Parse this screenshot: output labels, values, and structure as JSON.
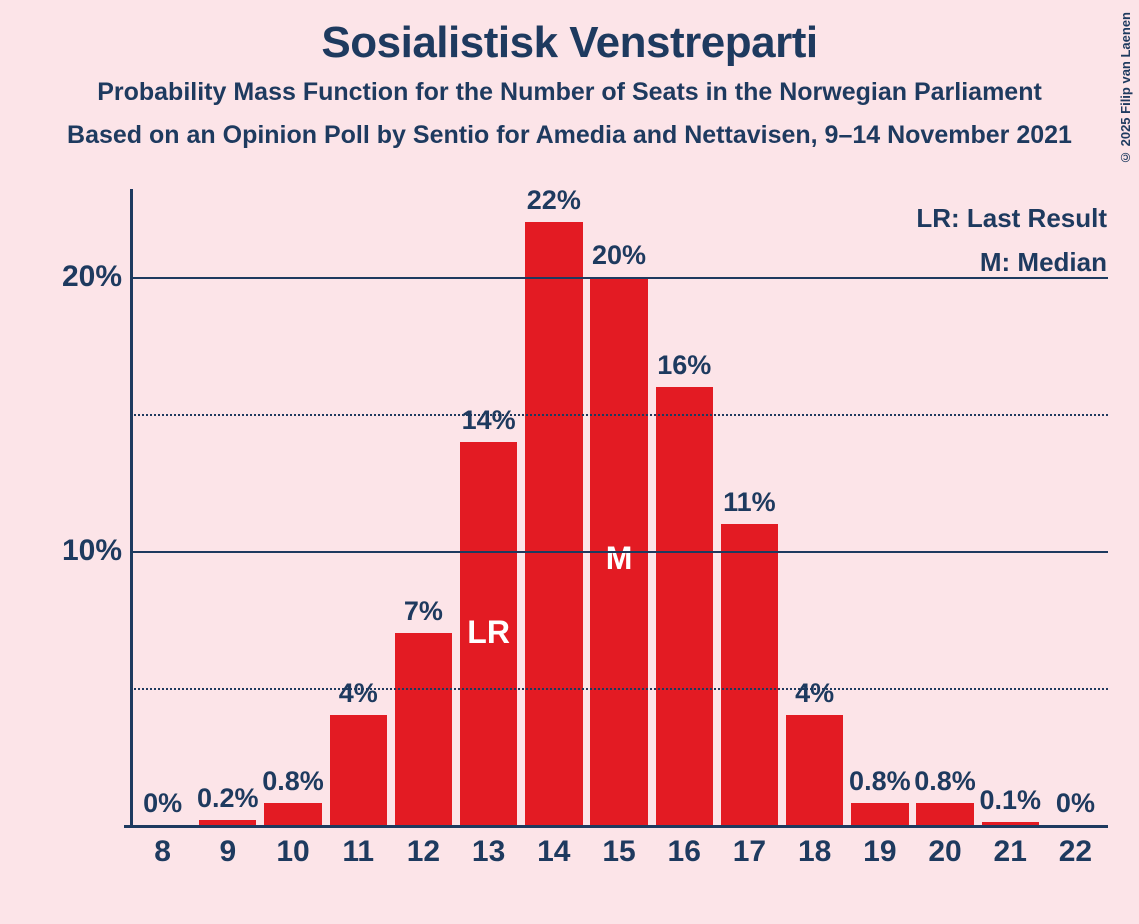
{
  "title": "Sosialistisk Venstreparti",
  "subtitle1": "Probability Mass Function for the Number of Seats in the Norwegian Parliament",
  "subtitle2": "Based on an Opinion Poll by Sentio for Amedia and Nettavisen, 9–14 November 2021",
  "legend": {
    "lr": "LR: Last Result",
    "m": "M: Median"
  },
  "copyright": "© 2025 Filip van Laenen",
  "chart": {
    "type": "bar",
    "background_color": "#fce4e8",
    "bar_color": "#e31b23",
    "axis_color": "#1e3a5f",
    "text_color": "#1e3a5f",
    "in_bar_text_color": "#ffffff",
    "ymax_display": 23,
    "y_ticks_major": [
      10,
      20
    ],
    "y_ticks_minor": [
      5,
      15
    ],
    "y_tick_labels": {
      "10": "10%",
      "20": "20%"
    },
    "bars": [
      {
        "x": "8",
        "value": 0,
        "label": "0%"
      },
      {
        "x": "9",
        "value": 0.2,
        "label": "0.2%"
      },
      {
        "x": "10",
        "value": 0.8,
        "label": "0.8%"
      },
      {
        "x": "11",
        "value": 4,
        "label": "4%"
      },
      {
        "x": "12",
        "value": 7,
        "label": "7%"
      },
      {
        "x": "13",
        "value": 14,
        "label": "14%",
        "in_bar": "LR",
        "in_bar_pos_pct": 55
      },
      {
        "x": "14",
        "value": 22,
        "label": "22%"
      },
      {
        "x": "15",
        "value": 20,
        "label": "20%",
        "in_bar": "M",
        "in_bar_pos_pct": 52
      },
      {
        "x": "16",
        "value": 16,
        "label": "16%"
      },
      {
        "x": "17",
        "value": 11,
        "label": "11%"
      },
      {
        "x": "18",
        "value": 4,
        "label": "4%"
      },
      {
        "x": "19",
        "value": 0.8,
        "label": "0.8%"
      },
      {
        "x": "20",
        "value": 0.8,
        "label": "0.8%"
      },
      {
        "x": "21",
        "value": 0.1,
        "label": "0.1%"
      },
      {
        "x": "22",
        "value": 0,
        "label": "0%"
      }
    ],
    "bar_width_ratio": 0.88,
    "title_fontsize": 44,
    "subtitle_fontsize": 25,
    "axis_label_fontsize": 30,
    "value_label_fontsize": 27,
    "legend_fontsize": 26
  }
}
